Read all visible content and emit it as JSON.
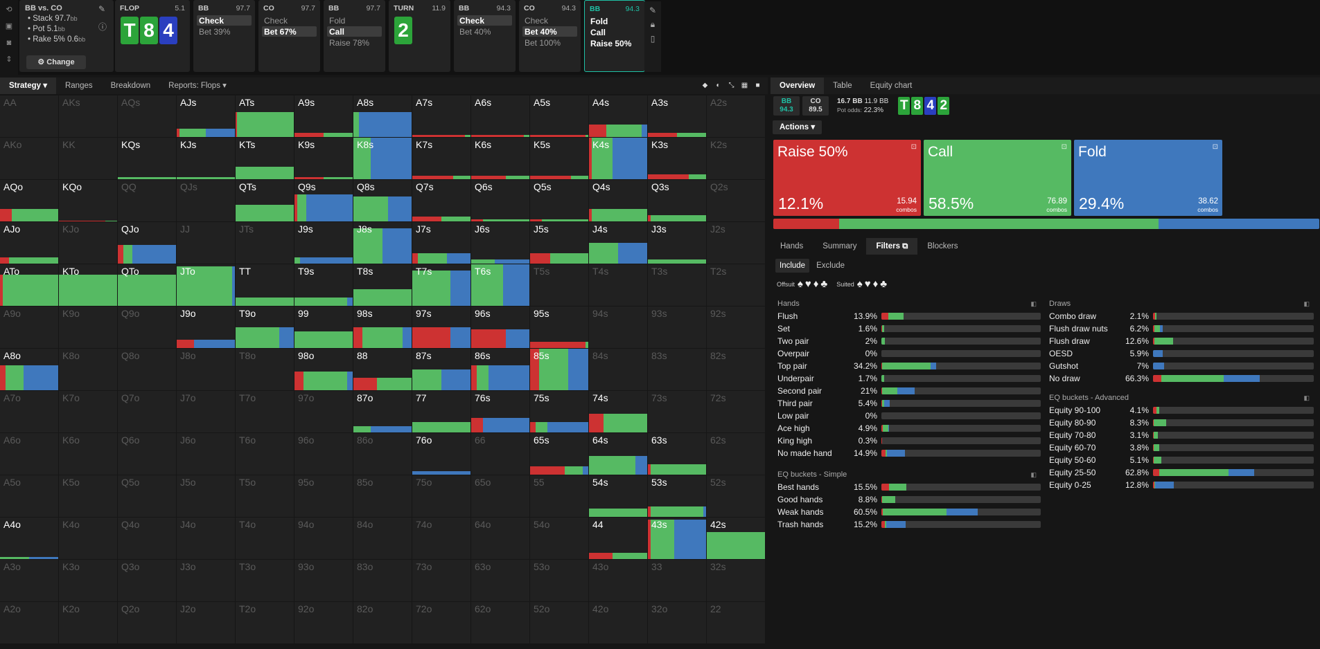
{
  "title": "Poker solver",
  "colors": {
    "raise": "#cd3232",
    "call": "#56ba63",
    "fold": "#3f78bd",
    "bg": "#161616",
    "accent": "#1fc1a6"
  },
  "toolbar": {
    "icons": [
      "refresh-icon",
      "save-icon",
      "gamepad-icon",
      "expand-icon"
    ]
  },
  "context": {
    "title": "BB vs. CO",
    "stack": "Stack 97.7",
    "stack_unit": "bb",
    "pot": "Pot 5.1",
    "pot_unit": "bb",
    "rake": "Rake 5% 0.6",
    "rake_unit": "bb",
    "change_label": "⚙ Change"
  },
  "nodes": [
    {
      "id": "flop",
      "player": "FLOP",
      "stack": "5.1",
      "cards": [
        {
          "r": "T",
          "c": "#2ca43a"
        },
        {
          "r": "8",
          "c": "#2ca43a"
        },
        {
          "r": "4",
          "c": "#2a3fbf"
        }
      ]
    },
    {
      "id": "bb1",
      "player": "BB",
      "stack": "97.7",
      "actions": [
        {
          "l": "Check",
          "s": true
        },
        {
          "l": "Bet 39%",
          "s": false
        }
      ]
    },
    {
      "id": "co1",
      "player": "CO",
      "stack": "97.7",
      "actions": [
        {
          "l": "Check",
          "s": false
        },
        {
          "l": "Bet 67%",
          "s": true
        }
      ]
    },
    {
      "id": "bb2",
      "player": "BB",
      "stack": "97.7",
      "actions": [
        {
          "l": "Fold",
          "s": false
        },
        {
          "l": "Call",
          "s": true
        },
        {
          "l": "Raise 78%",
          "s": false
        }
      ]
    },
    {
      "id": "turn",
      "player": "TURN",
      "stack": "11.9",
      "cards": [
        {
          "r": "2",
          "c": "#2ca43a"
        }
      ]
    },
    {
      "id": "bb3",
      "player": "BB",
      "stack": "94.3",
      "actions": [
        {
          "l": "Check",
          "s": true
        },
        {
          "l": "Bet 40%",
          "s": false
        }
      ]
    },
    {
      "id": "co2",
      "player": "CO",
      "stack": "94.3",
      "actions": [
        {
          "l": "Check",
          "s": false
        },
        {
          "l": "Bet 40%",
          "s": true
        },
        {
          "l": "Bet 100%",
          "s": false
        }
      ]
    },
    {
      "id": "bb4",
      "player": "BB",
      "stack": "94.3",
      "current": true,
      "actions": [
        {
          "l": "Fold",
          "s": false
        },
        {
          "l": "Call",
          "s": false
        },
        {
          "l": "Raise 50%",
          "s": false
        }
      ]
    }
  ],
  "left_tabs": [
    "Strategy ▾",
    "Ranges",
    "Breakdown",
    "Reports: Flops ▾"
  ],
  "right_tabs": [
    "Overview",
    "Table",
    "Equity chart"
  ],
  "info": {
    "bb_label": "BB",
    "bb_stack": "94.3",
    "co_label": "CO",
    "co_stack": "89.5",
    "pot_main": "16.7 BB",
    "pot_side": "11.9 BB",
    "pot_odds_label": "Pot odds:",
    "pot_odds": "22.3%",
    "board": [
      {
        "r": "T",
        "c": "#2ca43a"
      },
      {
        "r": "8",
        "c": "#2ca43a"
      },
      {
        "r": "4",
        "c": "#2a3fbf"
      },
      {
        "r": "2",
        "c": "#2ca43a"
      }
    ]
  },
  "actions_label": "Actions ▾",
  "action_boxes": [
    {
      "name": "Raise 50%",
      "pct": "12.1%",
      "combos": "15.94",
      "combos_label": "combos",
      "color": "#cd3232",
      "freq": 12.1
    },
    {
      "name": "Call",
      "pct": "58.5%",
      "combos": "76.89",
      "combos_label": "combos",
      "color": "#56ba63",
      "freq": 58.5
    },
    {
      "name": "Fold",
      "pct": "29.4%",
      "combos": "38.62",
      "combos_label": "combos",
      "color": "#3f78bd",
      "freq": 29.4
    }
  ],
  "sub_tabs": [
    "Hands",
    "Summary",
    "Filters ⧉",
    "Blockers"
  ],
  "include_label": "Include",
  "exclude_label": "Exclude",
  "offsuit_label": "Offsuit",
  "suited_label": "Suited",
  "offsuit_symbols": "♠♥♦♣",
  "suited_symbols": "♠♥♦♣",
  "hands_filter": {
    "title": "Hands",
    "rows": [
      {
        "n": "Flush",
        "p": "13.9%",
        "v": [
          3,
          7,
          0
        ],
        "t": 0.139
      },
      {
        "n": "Set",
        "p": "1.6%",
        "v": [
          0.2,
          0.8,
          0
        ],
        "t": 0.016
      },
      {
        "n": "Two pair",
        "p": "2%",
        "v": [
          0,
          2,
          0
        ],
        "t": 0.02
      },
      {
        "n": "Overpair",
        "p": "0%",
        "v": [
          0,
          0,
          0
        ],
        "t": 0
      },
      {
        "n": "Top pair",
        "p": "34.2%",
        "v": [
          0.5,
          30.5,
          3.2
        ],
        "t": 0.342
      },
      {
        "n": "Underpair",
        "p": "1.7%",
        "v": [
          0,
          1.7,
          0
        ],
        "t": 0.017
      },
      {
        "n": "Second pair",
        "p": "21%",
        "v": [
          0.5,
          9.5,
          11
        ],
        "t": 0.21
      },
      {
        "n": "Third pair",
        "p": "5.4%",
        "v": [
          0.3,
          1.4,
          3.7
        ],
        "t": 0.054
      },
      {
        "n": "Low pair",
        "p": "0%",
        "v": [
          0,
          0,
          0
        ],
        "t": 0
      },
      {
        "n": "Ace high",
        "p": "4.9%",
        "v": [
          0.9,
          3.5,
          0.5
        ],
        "t": 0.049
      },
      {
        "n": "King high",
        "p": "0.3%",
        "v": [
          0.3,
          0,
          0
        ],
        "t": 0.003
      },
      {
        "n": "No made hand",
        "p": "14.9%",
        "v": [
          2.5,
          0.8,
          11.6
        ],
        "t": 0.149
      }
    ]
  },
  "eq_simple": {
    "title": "EQ buckets - Simple",
    "rows": [
      {
        "n": "Best hands",
        "p": "15.5%",
        "v": [
          3,
          6.5,
          0
        ],
        "t": 0.155
      },
      {
        "n": "Good hands",
        "p": "8.8%",
        "v": [
          0.5,
          8.3,
          0
        ],
        "t": 0.088
      },
      {
        "n": "Weak hands",
        "p": "60.5%",
        "v": [
          1,
          40,
          19.5
        ],
        "t": 0.605
      },
      {
        "n": "Trash hands",
        "p": "15.2%",
        "v": [
          2,
          1,
          12.2
        ],
        "t": 0.152
      }
    ]
  },
  "draws_filter": {
    "title": "Draws",
    "rows": [
      {
        "n": "Combo draw",
        "p": "2.1%",
        "v": [
          1.5,
          0.6,
          0
        ],
        "t": 0.021
      },
      {
        "n": "Flush draw nuts",
        "p": "6.2%",
        "v": [
          1,
          3.2,
          2
        ],
        "t": 0.062
      },
      {
        "n": "Flush draw",
        "p": "12.6%",
        "v": [
          1,
          11.6,
          0
        ],
        "t": 0.126
      },
      {
        "n": "OESD",
        "p": "5.9%",
        "v": [
          0,
          0,
          5.9
        ],
        "t": 0.059
      },
      {
        "n": "Gutshot",
        "p": "7%",
        "v": [
          0,
          0,
          7
        ],
        "t": 0.07
      },
      {
        "n": "No draw",
        "p": "66.3%",
        "v": [
          5,
          39,
          22.3
        ],
        "t": 0.663
      }
    ]
  },
  "eq_advanced": {
    "title": "EQ buckets - Advanced",
    "rows": [
      {
        "n": "Equity 90-100",
        "p": "4.1%",
        "v": [
          2,
          2.1,
          0
        ],
        "t": 0.041
      },
      {
        "n": "Equity 80-90",
        "p": "8.3%",
        "v": [
          0.5,
          7.8,
          0
        ],
        "t": 0.083
      },
      {
        "n": "Equity 70-80",
        "p": "3.1%",
        "v": [
          0.5,
          2.6,
          0
        ],
        "t": 0.031
      },
      {
        "n": "Equity 60-70",
        "p": "3.8%",
        "v": [
          0.5,
          3.3,
          0
        ],
        "t": 0.038
      },
      {
        "n": "Equity 50-60",
        "p": "5.1%",
        "v": [
          0.5,
          4.6,
          0
        ],
        "t": 0.051
      },
      {
        "n": "Equity 25-50",
        "p": "62.8%",
        "v": [
          4,
          43,
          15.8
        ],
        "t": 0.628
      },
      {
        "n": "Equity 0-25",
        "p": "12.8%",
        "v": [
          1,
          0.5,
          11.3
        ],
        "t": 0.128
      }
    ]
  },
  "grid": {
    "ranks": [
      "A",
      "K",
      "Q",
      "J",
      "T",
      "9",
      "8",
      "7",
      "6",
      "5",
      "4",
      "3",
      "2"
    ],
    "cells": {
      "AJs": {
        "h": 0.2,
        "r": 0.05,
        "c": 0.45,
        "f": 0.5,
        "w": 1
      },
      "ATs": {
        "h": 0.6,
        "r": 0.02,
        "c": 0.98,
        "f": 0,
        "w": 1
      },
      "A9s": {
        "h": 0.1,
        "r": 0.5,
        "c": 0.5,
        "f": 0,
        "w": 1
      },
      "A8s": {
        "h": 0.6,
        "r": 0,
        "c": 0.1,
        "f": 0.9,
        "w": 1
      },
      "A7s": {
        "h": 0.05,
        "r": 0.9,
        "c": 0.1,
        "f": 0,
        "w": 1
      },
      "A6s": {
        "h": 0.05,
        "r": 0.9,
        "c": 0.1,
        "f": 0,
        "w": 1
      },
      "A5s": {
        "h": 0.05,
        "r": 0.95,
        "c": 0.05,
        "f": 0,
        "w": 1
      },
      "A4s": {
        "h": 0.3,
        "r": 0.3,
        "c": 0.6,
        "f": 0.1,
        "w": 1
      },
      "A3s": {
        "h": 0.1,
        "r": 0.5,
        "c": 0.5,
        "f": 0,
        "w": 1
      },
      "KQs": {
        "h": 0.05,
        "r": 0,
        "c": 1,
        "f": 0,
        "w": 1
      },
      "KJs": {
        "h": 0.05,
        "r": 0,
        "c": 1,
        "f": 0,
        "w": 1
      },
      "KTs": {
        "h": 0.3,
        "r": 0,
        "c": 1,
        "f": 0,
        "w": 1
      },
      "K9s": {
        "h": 0.05,
        "r": 0.5,
        "c": 0.5,
        "f": 0,
        "w": 1
      },
      "K8s": {
        "h": 1,
        "r": 0,
        "c": 0.3,
        "f": 0.7,
        "w": 1
      },
      "K7s": {
        "h": 0.08,
        "r": 0.7,
        "c": 0.3,
        "f": 0,
        "w": 1
      },
      "K6s": {
        "h": 0.08,
        "r": 0.6,
        "c": 0.4,
        "f": 0,
        "w": 1
      },
      "K5s": {
        "h": 0.08,
        "r": 0.7,
        "c": 0.3,
        "f": 0,
        "w": 1
      },
      "K4s": {
        "h": 1,
        "r": 0.05,
        "c": 0.35,
        "f": 0.6,
        "w": 1
      },
      "K3s": {
        "h": 0.12,
        "r": 0.7,
        "c": 0.3,
        "f": 0,
        "w": 1
      },
      "AQo": {
        "h": 0.3,
        "r": 0.2,
        "c": 0.8,
        "f": 0,
        "w": 1
      },
      "KQo": {
        "h": 0.02,
        "r": 0.8,
        "c": 0.2,
        "f": 0,
        "w": 1
      },
      "QTs": {
        "h": 0.4,
        "r": 0,
        "c": 1,
        "f": 0,
        "w": 1
      },
      "Q9s": {
        "h": 0.65,
        "r": 0.05,
        "c": 0.15,
        "f": 0.8,
        "w": 1
      },
      "Q8s": {
        "h": 0.6,
        "r": 0,
        "c": 0.6,
        "f": 0.4,
        "w": 1
      },
      "Q7s": {
        "h": 0.12,
        "r": 0.5,
        "c": 0.5,
        "f": 0,
        "w": 1
      },
      "Q6s": {
        "h": 0.05,
        "r": 0.2,
        "c": 0.8,
        "f": 0,
        "w": 1
      },
      "Q5s": {
        "h": 0.05,
        "r": 0.2,
        "c": 0.8,
        "f": 0,
        "w": 1
      },
      "Q4s": {
        "h": 0.3,
        "r": 0.05,
        "c": 0.95,
        "f": 0,
        "w": 1
      },
      "Q3s": {
        "h": 0.15,
        "r": 0.05,
        "c": 0.95,
        "f": 0,
        "w": 1
      },
      "AJo": {
        "h": 0.15,
        "r": 0.15,
        "c": 0.85,
        "f": 0,
        "w": 1
      },
      "QJo": {
        "h": 0.45,
        "r": 0.1,
        "c": 0.15,
        "f": 0.75,
        "w": 1
      },
      "J9s": {
        "h": 0.15,
        "r": 0,
        "c": 0.1,
        "f": 0.9,
        "w": 1
      },
      "J8s": {
        "h": 0.85,
        "r": 0,
        "c": 0.5,
        "f": 0.5,
        "w": 1
      },
      "J7s": {
        "h": 0.25,
        "r": 0.1,
        "c": 0.5,
        "f": 0.4,
        "w": 1
      },
      "J6s": {
        "h": 0.1,
        "r": 0,
        "c": 0.4,
        "f": 0.6,
        "w": 1
      },
      "J5s": {
        "h": 0.25,
        "r": 0.35,
        "c": 0.65,
        "f": 0,
        "w": 1
      },
      "J4s": {
        "h": 0.5,
        "r": 0,
        "c": 0.5,
        "f": 0.5,
        "w": 1
      },
      "J3s": {
        "h": 0.1,
        "r": 0,
        "c": 1,
        "f": 0,
        "w": 1
      },
      "ATo": {
        "h": 0.75,
        "r": 0.05,
        "c": 0.95,
        "f": 0,
        "w": 1
      },
      "KTo": {
        "h": 0.75,
        "r": 0,
        "c": 1,
        "f": 0,
        "w": 1
      },
      "QTo": {
        "h": 0.75,
        "r": 0,
        "c": 1,
        "f": 0,
        "w": 1
      },
      "JTo": {
        "h": 0.95,
        "r": 0,
        "c": 0.95,
        "f": 0.05,
        "w": 1
      },
      "TT": {
        "h": 0.2,
        "r": 0,
        "c": 1,
        "f": 0,
        "w": 1
      },
      "T9s": {
        "h": 0.2,
        "r": 0,
        "c": 0.9,
        "f": 0.1,
        "w": 1
      },
      "T8s": {
        "h": 0.4,
        "r": 0,
        "c": 1,
        "f": 0,
        "w": 1
      },
      "T7s": {
        "h": 0.85,
        "r": 0,
        "c": 0.65,
        "f": 0.35,
        "w": 1
      },
      "T6s": {
        "h": 1,
        "r": 0,
        "c": 0.55,
        "f": 0.45,
        "w": 1
      },
      "J9o": {
        "h": 0.2,
        "r": 0.3,
        "c": 0,
        "f": 0.7,
        "w": 1
      },
      "T9o": {
        "h": 0.5,
        "r": 0,
        "c": 0.75,
        "f": 0.25,
        "w": 1
      },
      "99": {
        "h": 0.4,
        "r": 0,
        "c": 1,
        "f": 0,
        "w": 1
      },
      "98s": {
        "h": 0.5,
        "r": 0.15,
        "c": 0.7,
        "f": 0.15,
        "w": 1
      },
      "97s": {
        "h": 0.5,
        "r": 0.65,
        "c": 0,
        "f": 0.35,
        "w": 1
      },
      "96s": {
        "h": 0.45,
        "r": 0.6,
        "c": 0,
        "f": 0.4,
        "w": 1
      },
      "95s": {
        "h": 0.15,
        "r": 0.95,
        "c": 0.05,
        "f": 0,
        "w": 1
      },
      "A8o": {
        "h": 0.6,
        "r": 0.1,
        "c": 0.3,
        "f": 0.6,
        "w": 1
      },
      "98o": {
        "h": 0.45,
        "r": 0.15,
        "c": 0.75,
        "f": 0.1,
        "w": 1
      },
      "88": {
        "h": 0.3,
        "r": 0.4,
        "c": 0.6,
        "f": 0,
        "w": 1
      },
      "87s": {
        "h": 0.5,
        "r": 0,
        "c": 0.5,
        "f": 0.5,
        "w": 1
      },
      "86s": {
        "h": 0.6,
        "r": 0.1,
        "c": 0.2,
        "f": 0.7,
        "w": 1
      },
      "85s": {
        "h": 1,
        "r": 0.15,
        "c": 0.5,
        "f": 0.35,
        "w": 1
      },
      "87o": {
        "h": 0.15,
        "r": 0,
        "c": 0.3,
        "f": 0.7,
        "w": 1
      },
      "77": {
        "h": 0.25,
        "r": 0,
        "c": 1,
        "f": 0,
        "w": 1
      },
      "76s": {
        "h": 0.35,
        "r": 0.2,
        "c": 0,
        "f": 0.8,
        "w": 1
      },
      "75s": {
        "h": 0.25,
        "r": 0.1,
        "c": 0.2,
        "f": 0.7,
        "w": 1
      },
      "74s": {
        "h": 0.45,
        "r": 0.25,
        "c": 0.75,
        "f": 0,
        "w": 1
      },
      "76o": {
        "h": 0.08,
        "r": 0,
        "c": 0,
        "f": 1,
        "w": 1
      },
      "65s": {
        "h": 0.2,
        "r": 0.6,
        "c": 0.3,
        "f": 0.1,
        "w": 1
      },
      "64s": {
        "h": 0.45,
        "r": 0,
        "c": 0.8,
        "f": 0.2,
        "w": 1
      },
      "63s": {
        "h": 0.25,
        "r": 0.05,
        "c": 0.95,
        "f": 0,
        "w": 1
      },
      "54s": {
        "h": 0.2,
        "r": 0,
        "c": 1,
        "f": 0,
        "w": 1
      },
      "53s": {
        "h": 0.25,
        "r": 0.05,
        "c": 0.9,
        "f": 0.05,
        "w": 1
      },
      "A4o": {
        "h": 0.05,
        "r": 0,
        "c": 0.5,
        "f": 0.5,
        "w": 1
      },
      "44": {
        "h": 0.15,
        "r": 0.4,
        "c": 0.6,
        "f": 0,
        "w": 1
      },
      "43s": {
        "h": 0.95,
        "r": 0.05,
        "c": 0.4,
        "f": 0.55,
        "w": 1
      },
      "42s": {
        "h": 0.65,
        "r": 0,
        "c": 1,
        "f": 0,
        "w": 1
      }
    },
    "inactive": [
      "AA",
      "AKs",
      "AQs",
      "A2s",
      "AKo",
      "KK",
      "K2s",
      "QQ",
      "Q2s",
      "KJo",
      "JJ",
      "JTs",
      "J2s",
      "T5s",
      "T4s",
      "T3s",
      "T2s",
      "A9o",
      "K9o",
      "Q9o",
      "94s",
      "93s",
      "92s",
      "K8o",
      "Q8o",
      "J8o",
      "T8o",
      "84s",
      "83s",
      "82s",
      "A7o",
      "K7o",
      "Q7o",
      "J7o",
      "T7o",
      "97o",
      "73s",
      "72s",
      "A6o",
      "K6o",
      "Q6o",
      "J6o",
      "T6o",
      "96o",
      "86o",
      "62s",
      "A5o",
      "K5o",
      "Q5o",
      "J5o",
      "T5o",
      "95o",
      "85o",
      "75o",
      "65o",
      "52s",
      "K4o",
      "Q4o",
      "J4o",
      "T4o",
      "94o",
      "84o",
      "74o",
      "64o",
      "54o",
      "A3o",
      "K3o",
      "Q3o",
      "J3o",
      "T3o",
      "93o",
      "83o",
      "73o",
      "63o",
      "53o",
      "43o",
      "33",
      "32s",
      "A2o",
      "K2o",
      "Q2o",
      "J2o",
      "T2o",
      "92o",
      "82o",
      "72o",
      "62o",
      "52o",
      "42o",
      "32o",
      "22",
      "55",
      "66"
    ]
  }
}
